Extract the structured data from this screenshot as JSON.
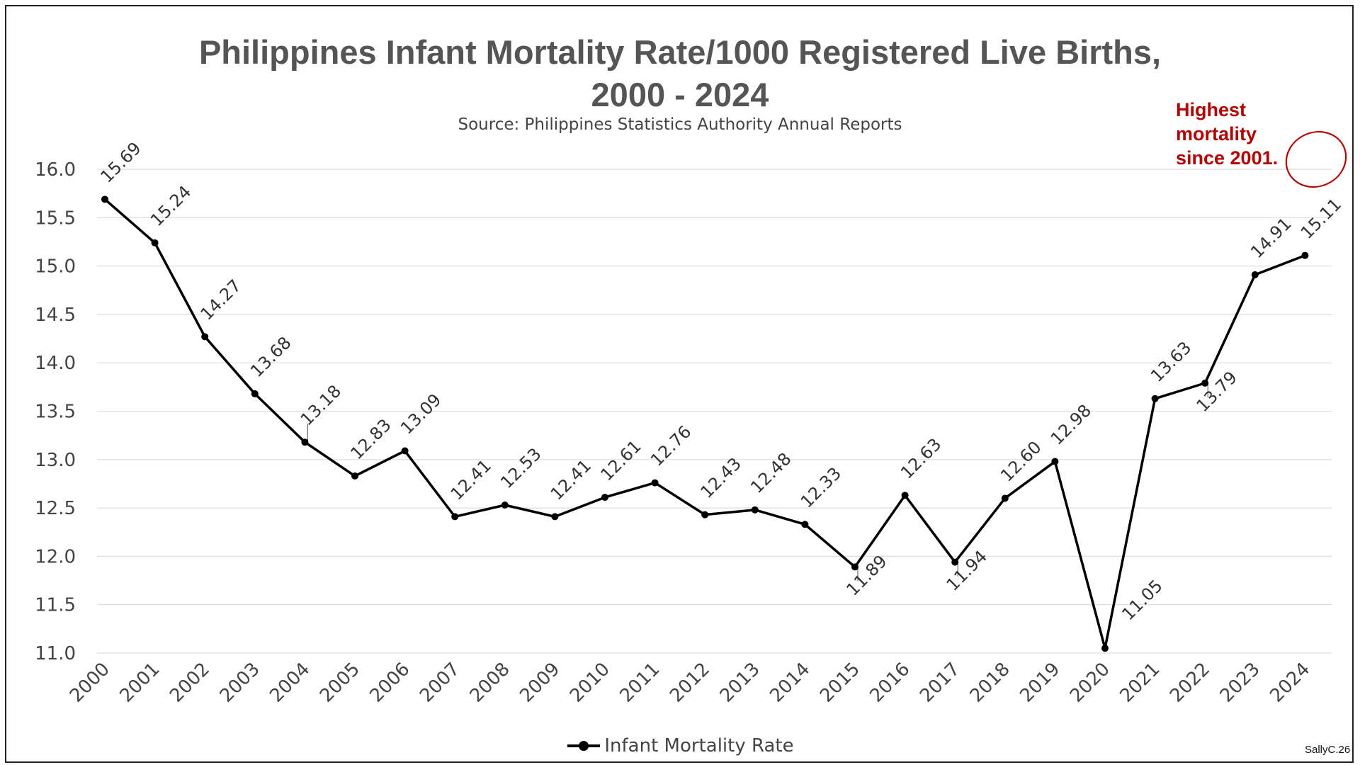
{
  "chart_data": {
    "type": "line",
    "title_line1": "Philippines Infant Mortality Rate/1000 Registered Live Births,",
    "title_line2": "2000 - 2024",
    "subtitle": "Source: Philippines Statistics Authority Annual Reports",
    "x": [
      "2000",
      "2001",
      "2002",
      "2003",
      "2004",
      "2005",
      "2006",
      "2007",
      "2008",
      "2009",
      "2010",
      "2011",
      "2012",
      "2013",
      "2014",
      "2015",
      "2016",
      "2017",
      "2018",
      "2019",
      "2020",
      "2021",
      "2022",
      "2023",
      "2024"
    ],
    "series": [
      {
        "name": "Infant Mortality Rate",
        "color": "#000000",
        "values": [
          15.69,
          15.24,
          14.27,
          13.68,
          13.18,
          12.83,
          13.09,
          12.41,
          12.53,
          12.41,
          12.61,
          12.76,
          12.43,
          12.48,
          12.33,
          11.89,
          12.63,
          11.94,
          12.6,
          12.98,
          11.05,
          13.63,
          13.79,
          14.91,
          15.11
        ],
        "labels": [
          "15.69",
          "15.24",
          "14.27",
          "13.68",
          "13.18",
          "12.83",
          "13.09",
          "12.41",
          "12.53",
          "12.41",
          "12.61",
          "12.76",
          "12.43",
          "12.48",
          "12.33",
          "11.89",
          "12.63",
          "11.94",
          "12.60",
          "12.98",
          "11.05",
          "13.63",
          "13.79",
          "14.91",
          "15.11"
        ]
      }
    ],
    "ylim": [
      11.0,
      16.0
    ],
    "yticks": [
      "11.0",
      "11.5",
      "12.0",
      "12.5",
      "13.0",
      "13.5",
      "14.0",
      "14.5",
      "15.0",
      "15.5",
      "16.0"
    ],
    "grid": true,
    "legend_position": "bottom-center",
    "annotation": {
      "lines": [
        "Highest",
        "mortality",
        "since 2001."
      ],
      "color": "#b30000"
    }
  },
  "watermark": "SallyC.26"
}
